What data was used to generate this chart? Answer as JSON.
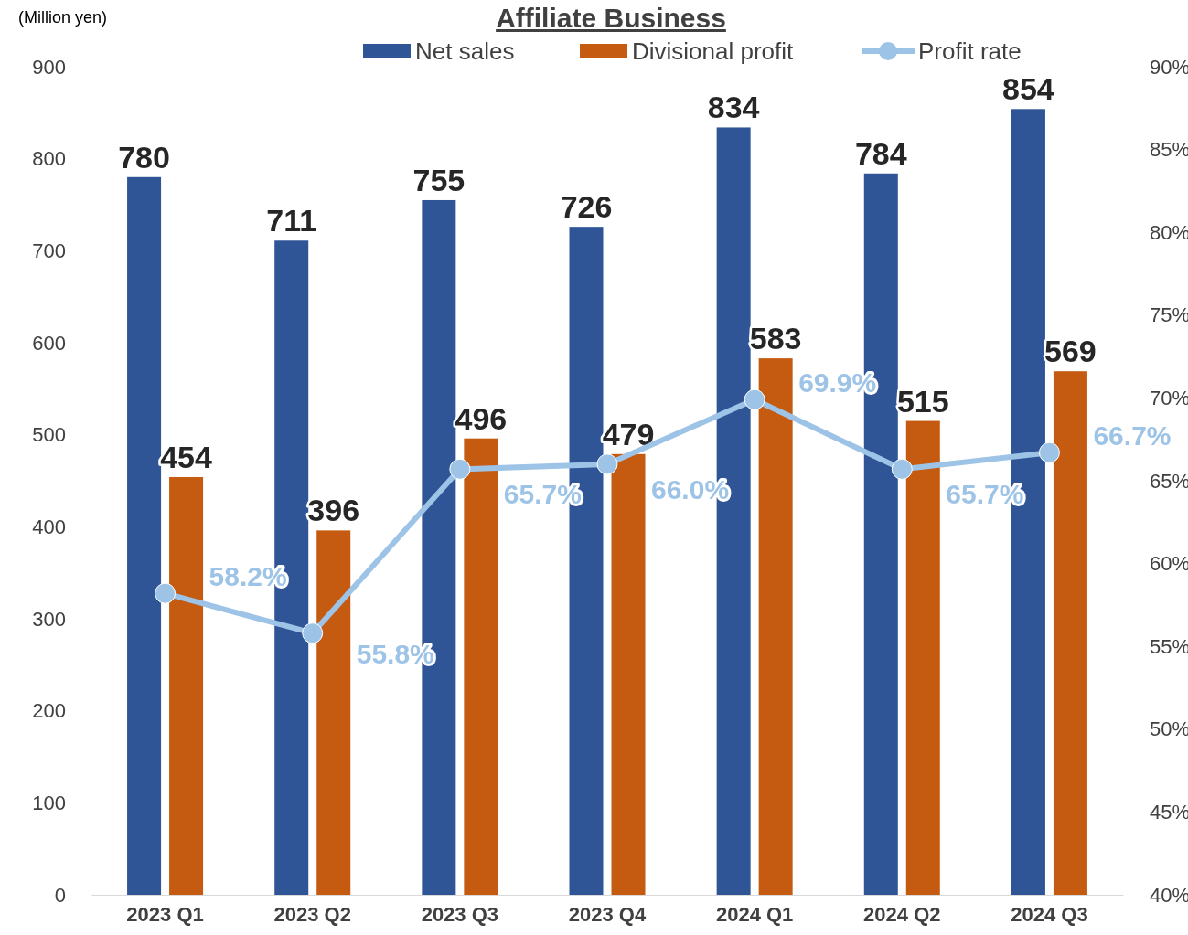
{
  "chart_data": {
    "type": "bar",
    "title": "Affiliate Business",
    "ylabel": "(Million yen)",
    "categories": [
      "2023 Q1",
      "2023 Q2",
      "2023 Q3",
      "2023 Q4",
      "2024 Q1",
      "2024 Q2",
      "2024 Q3"
    ],
    "series": [
      {
        "name": "Net sales",
        "color": "#2f5597",
        "values": [
          780,
          711,
          755,
          726,
          834,
          784,
          854
        ]
      },
      {
        "name": "Divisional profit",
        "color": "#c55a11",
        "values": [
          454,
          396,
          496,
          479,
          583,
          515,
          569
        ]
      },
      {
        "name": "Profit rate",
        "type": "line",
        "axis": "y2",
        "color": "#9dc3e6",
        "marker": "circle",
        "values": [
          58.2,
          55.8,
          65.7,
          66.0,
          69.9,
          65.7,
          66.7
        ],
        "value_labels": [
          "58.2%",
          "55.8%",
          "65.7%",
          "66.0%",
          "69.9%",
          "65.7%",
          "66.7%"
        ]
      }
    ],
    "ylim": [
      0,
      900
    ],
    "yticks": [
      0,
      100,
      200,
      300,
      400,
      500,
      600,
      700,
      800,
      900
    ],
    "y2lim": [
      40,
      90
    ],
    "y2ticks": [
      {
        "value": 40,
        "label": "40%"
      },
      {
        "value": 45,
        "label": "45%"
      },
      {
        "value": 50,
        "label": "50%"
      },
      {
        "value": 55,
        "label": "55%"
      },
      {
        "value": 60,
        "label": "60%"
      },
      {
        "value": 65,
        "label": "65%"
      },
      {
        "value": 70,
        "label": "70%"
      },
      {
        "value": 75,
        "label": "75%"
      },
      {
        "value": 80,
        "label": "80%"
      },
      {
        "value": 85,
        "label": "85%"
      },
      {
        "value": 90,
        "label": "90%"
      }
    ],
    "data_labels": true,
    "legend": "top",
    "grid": false
  }
}
